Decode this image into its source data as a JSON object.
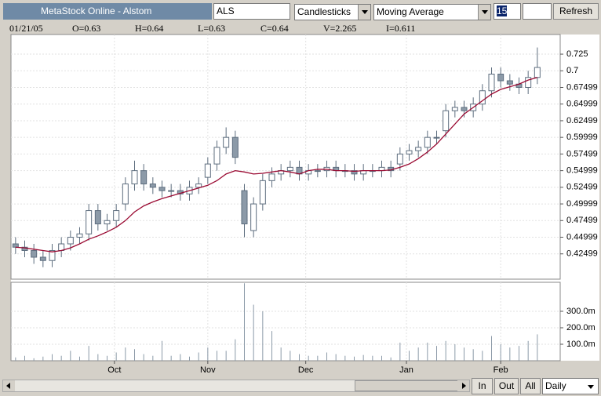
{
  "toolbar": {
    "title": "MetaStock Online - Alstom",
    "symbol": "ALS",
    "chart_style": "Candlesticks",
    "indicator": "Moving Average",
    "period": "15",
    "refresh": "Refresh"
  },
  "info": {
    "date": "01/21/05",
    "open": "O=0.63",
    "high": "H=0.64",
    "low": "L=0.63",
    "close": "C=0.64",
    "volume": "V=2.265",
    "indicator": "I=0.611"
  },
  "chart_data": [
    {
      "type": "candlestick",
      "xlim": [
        0,
        60
      ],
      "ylim": [
        0.387,
        0.7545
      ],
      "grid": true,
      "up_color": "#ffffff",
      "down_color": "#8c9aa8",
      "edge_color": "#5d6d7e",
      "yticks": [
        {
          "value": 0.725,
          "label": "0.725"
        },
        {
          "value": 0.7,
          "label": "0.7"
        },
        {
          "value": 0.675,
          "label": "0.67499"
        },
        {
          "value": 0.65,
          "label": "0.64999"
        },
        {
          "value": 0.625,
          "label": "0.62499"
        },
        {
          "value": 0.6,
          "label": "0.59999"
        },
        {
          "value": 0.575,
          "label": "0.57499"
        },
        {
          "value": 0.55,
          "label": "0.54999"
        },
        {
          "value": 0.525,
          "label": "0.52499"
        },
        {
          "value": 0.5,
          "label": "0.49999"
        },
        {
          "value": 0.475,
          "label": "0.47499"
        },
        {
          "value": 0.45,
          "label": "0.44999"
        },
        {
          "value": 0.425,
          "label": "0.42499"
        }
      ],
      "open": [
        0.44,
        0.435,
        0.43,
        0.42,
        0.415,
        0.43,
        0.44,
        0.45,
        0.455,
        0.49,
        0.47,
        0.475,
        0.5,
        0.53,
        0.55,
        0.53,
        0.525,
        0.52,
        0.52,
        0.515,
        0.525,
        0.54,
        0.56,
        0.585,
        0.6,
        0.52,
        0.46,
        0.5,
        0.535,
        0.545,
        0.55,
        0.555,
        0.545,
        0.55,
        0.55,
        0.555,
        0.55,
        0.55,
        0.545,
        0.55,
        0.55,
        0.555,
        0.56,
        0.575,
        0.58,
        0.585,
        0.6,
        0.61,
        0.64,
        0.645,
        0.64,
        0.65,
        0.67,
        0.695,
        0.685,
        0.68,
        0.675,
        0.69
      ],
      "high": [
        0.45,
        0.445,
        0.44,
        0.43,
        0.44,
        0.45,
        0.46,
        0.465,
        0.5,
        0.5,
        0.485,
        0.5,
        0.54,
        0.565,
        0.56,
        0.54,
        0.535,
        0.53,
        0.53,
        0.535,
        0.54,
        0.57,
        0.595,
        0.615,
        0.61,
        0.53,
        0.51,
        0.545,
        0.555,
        0.56,
        0.565,
        0.565,
        0.56,
        0.56,
        0.565,
        0.565,
        0.56,
        0.56,
        0.56,
        0.56,
        0.565,
        0.565,
        0.585,
        0.59,
        0.595,
        0.61,
        0.61,
        0.65,
        0.655,
        0.655,
        0.66,
        0.68,
        0.705,
        0.705,
        0.695,
        0.69,
        0.7,
        0.735
      ],
      "low": [
        0.425,
        0.42,
        0.41,
        0.405,
        0.405,
        0.42,
        0.43,
        0.44,
        0.445,
        0.46,
        0.46,
        0.465,
        0.49,
        0.52,
        0.52,
        0.515,
        0.51,
        0.51,
        0.505,
        0.505,
        0.515,
        0.53,
        0.55,
        0.575,
        0.56,
        0.45,
        0.45,
        0.49,
        0.525,
        0.535,
        0.54,
        0.535,
        0.535,
        0.54,
        0.54,
        0.54,
        0.54,
        0.535,
        0.535,
        0.54,
        0.54,
        0.54,
        0.55,
        0.565,
        0.57,
        0.575,
        0.59,
        0.6,
        0.63,
        0.63,
        0.63,
        0.64,
        0.66,
        0.675,
        0.67,
        0.665,
        0.665,
        0.68
      ],
      "close": [
        0.435,
        0.43,
        0.42,
        0.415,
        0.43,
        0.44,
        0.45,
        0.455,
        0.49,
        0.47,
        0.475,
        0.49,
        0.53,
        0.55,
        0.53,
        0.525,
        0.52,
        0.52,
        0.515,
        0.525,
        0.53,
        0.56,
        0.585,
        0.6,
        0.57,
        0.47,
        0.5,
        0.535,
        0.545,
        0.55,
        0.555,
        0.545,
        0.55,
        0.55,
        0.555,
        0.55,
        0.55,
        0.545,
        0.55,
        0.55,
        0.555,
        0.55,
        0.575,
        0.58,
        0.585,
        0.6,
        0.6,
        0.64,
        0.645,
        0.64,
        0.65,
        0.67,
        0.695,
        0.685,
        0.68,
        0.675,
        0.69,
        0.705
      ],
      "overlay": {
        "color": "#9a0a32",
        "values": [
          0.435,
          0.434,
          0.432,
          0.43,
          0.428,
          0.43,
          0.434,
          0.44,
          0.447,
          0.452,
          0.458,
          0.465,
          0.475,
          0.488,
          0.497,
          0.503,
          0.508,
          0.512,
          0.516,
          0.52,
          0.524,
          0.528,
          0.535,
          0.545,
          0.55,
          0.548,
          0.545,
          0.546,
          0.548,
          0.55,
          0.548,
          0.545,
          0.55,
          0.552,
          0.552,
          0.55,
          0.55,
          0.549,
          0.55,
          0.55,
          0.55,
          0.551,
          0.555,
          0.56,
          0.568,
          0.578,
          0.59,
          0.605,
          0.62,
          0.635,
          0.645,
          0.655,
          0.665,
          0.672,
          0.676,
          0.68,
          0.686,
          0.69
        ]
      }
    },
    {
      "type": "bar",
      "xlim": [
        0,
        60
      ],
      "ylim": [
        0,
        476
      ],
      "color": "#8c9aa8",
      "grid": true,
      "yticks": [
        {
          "value": 300,
          "label": "300.0m"
        },
        {
          "value": 200,
          "label": "200.0m"
        },
        {
          "value": 100,
          "label": "100.0m"
        }
      ],
      "xticks": [
        {
          "value": 11.3,
          "label": "Oct"
        },
        {
          "value": 21.5,
          "label": "Nov"
        },
        {
          "value": 32.2,
          "label": "Dec"
        },
        {
          "value": 43.2,
          "label": "Jan"
        },
        {
          "value": 53.5,
          "label": "Feb"
        }
      ],
      "values": [
        20,
        30,
        15,
        25,
        40,
        30,
        60,
        25,
        90,
        40,
        30,
        50,
        80,
        70,
        40,
        30,
        120,
        30,
        40,
        25,
        50,
        80,
        60,
        60,
        130,
        470,
        340,
        300,
        180,
        80,
        60,
        40,
        30,
        30,
        50,
        40,
        30,
        25,
        35,
        30,
        30,
        20,
        110,
        60,
        80,
        110,
        90,
        120,
        100,
        80,
        70,
        60,
        150,
        100,
        80,
        90,
        120,
        160
      ]
    }
  ],
  "navigation": {
    "zoom_in": "In",
    "zoom_out": "Out",
    "all": "All",
    "interval": "Daily"
  }
}
